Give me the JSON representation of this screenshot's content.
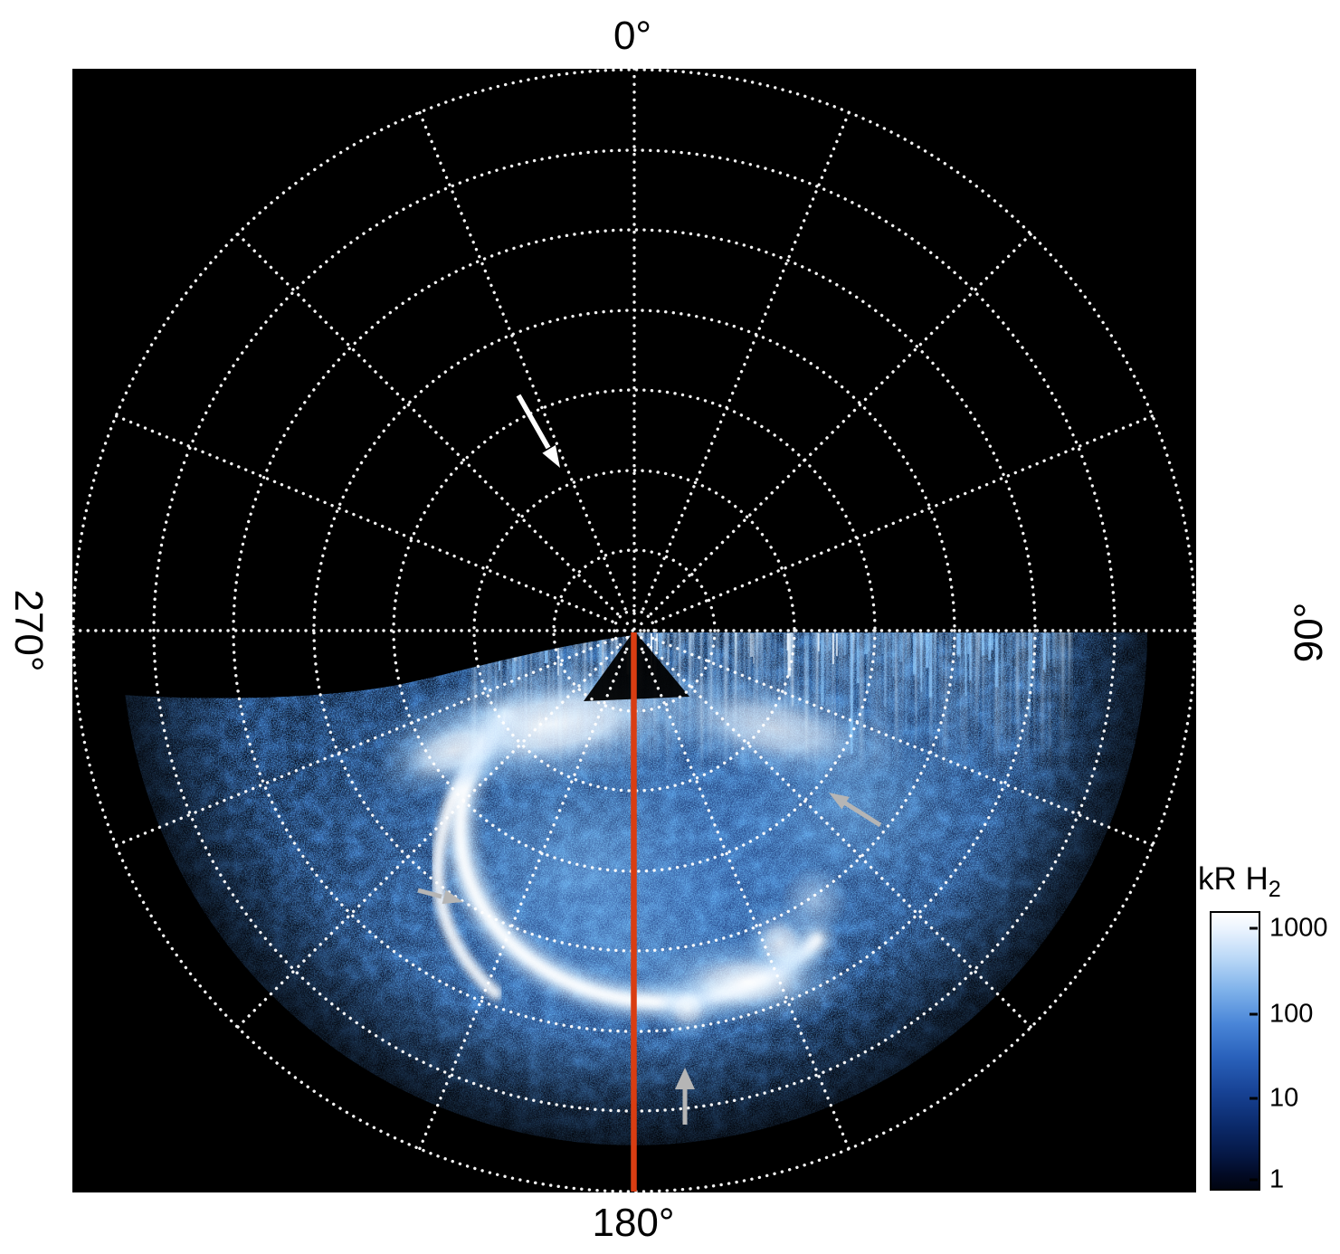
{
  "plot": {
    "angle_labels": {
      "top": "0°",
      "right": "90°",
      "bottom": "180°",
      "left": "270°"
    }
  },
  "colorbar": {
    "title_main": "kR H",
    "title_sub": "2",
    "ticks": [
      "1000",
      "100",
      "10",
      "1"
    ],
    "gradient_top_to_bottom": [
      "#ffffff",
      "#bcd9f7",
      "#7fb2ea",
      "#4a86d8",
      "#174294",
      "#0b2a6b",
      "#020a24",
      "#010511"
    ]
  },
  "colors": {
    "meridian_line": "#d93d12",
    "grid_dots": "#ffffff",
    "plot_background": "#000000",
    "page_background": "#ffffff",
    "annotation_arrow_white": "#ffffff",
    "annotation_arrow_gray": "#b5b5b5"
  },
  "chart_data": {
    "type": "heatmap",
    "projection": "polar",
    "title": "",
    "description": "Polar projection map of auroral H2 emission brightness. Azimuth labeled clockwise from top: 0° top, 90° right, 180° bottom, 270° left. White dotted graticule with concentric rings and radial spokes every 22.5°. Emission fills the lower (90°–270°) half of the disc.",
    "angular_tick_labels": [
      "0°",
      "90°",
      "180°",
      "270°"
    ],
    "colorbar": {
      "label": "kR H2",
      "scale": "log",
      "tick_values": [
        1000,
        100,
        10,
        1
      ],
      "min": 1,
      "max": 1000,
      "colormap": "black to blue to white"
    },
    "features": [
      {
        "name": "diffuse auroral emission",
        "extent": "fills azimuths ~90°–270° (lower half) out to ~90% of plot radius",
        "intensity_kR": "10–100, speckled"
      },
      {
        "name": "main auroral oval",
        "shape": "bright horseshoe arc open toward upper right, centred below the pole",
        "intensity_kR": "~1000"
      },
      {
        "name": "saturated bright patch",
        "location": "just below centre, left of the 180° meridian line",
        "intensity_kR": ">1000 (white)"
      },
      {
        "name": "bright streaked band",
        "location": "along the 90°–270° boundary right of centre",
        "intensity_kR": "100–1000"
      },
      {
        "name": "meridian marker line",
        "from": "centre (pole)",
        "to": "outer edge at 180°",
        "color": "#d93d12"
      }
    ],
    "annotations": [
      {
        "type": "arrow",
        "color": "white",
        "location": "upper-left quadrant, pointing down-right toward centre"
      },
      {
        "type": "arrow",
        "color": "gray",
        "location": "right side of emission region, pointing up-left"
      },
      {
        "type": "arrow",
        "color": "gray",
        "location": "left side of emission region, pointing right toward the bright arc"
      },
      {
        "type": "arrow",
        "color": "gray",
        "location": "bottom centre of emission region, pointing up"
      }
    ],
    "layout": {
      "grid": "dotted white polar graticule",
      "legend_position": "colorbar lower right",
      "background": "black square panel on white page"
    }
  }
}
